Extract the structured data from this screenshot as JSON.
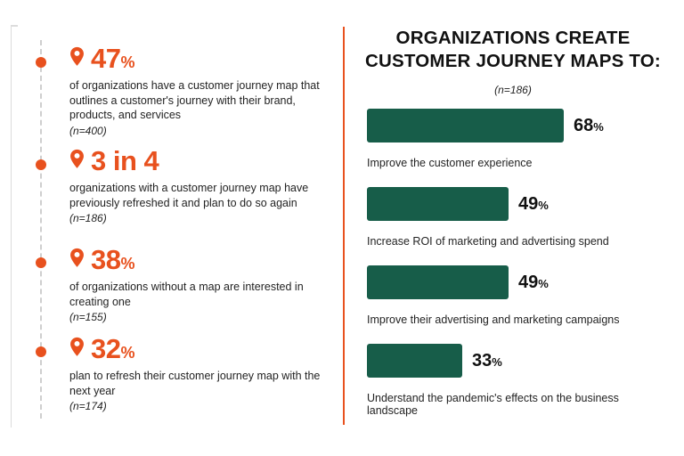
{
  "colors": {
    "accent_orange": "#e8511e",
    "bar_green": "#175d49",
    "text_dark": "#1f1f1f",
    "timeline_gray": "#cfcfcf"
  },
  "left_panel": {
    "stats": [
      {
        "value": "47",
        "suffix": "%",
        "description": "of organizations have a customer journey map that outlines a customer's journey with their brand, products, and services",
        "sample": "(n=400)"
      },
      {
        "value": "3 in 4",
        "suffix": "",
        "description": "organizations with a customer journey map have previously refreshed it and plan to do so again",
        "sample": "(n=186)"
      },
      {
        "value": "38",
        "suffix": "%",
        "description": "of organizations without a map are interested in creating one",
        "sample": "(n=155)"
      },
      {
        "value": "32",
        "suffix": "%",
        "description": "plan to refresh their customer journey map with the next year",
        "sample": "(n=174)"
      }
    ]
  },
  "right_panel": {
    "title_line1": "ORGANIZATIONS CREATE",
    "title_line2": "CUSTOMER JOURNEY MAPS TO:",
    "sample": "(n=186)"
  },
  "chart_data": {
    "type": "bar",
    "orientation": "horizontal",
    "title": "ORGANIZATIONS CREATE CUSTOMER JOURNEY MAPS TO:",
    "subtitle": "(n=186)",
    "categories": [
      "Improve the customer experience",
      "Increase ROI of marketing and advertising spend",
      "Improve their advertising and marketing campaigns",
      "Understand the pandemic's effects on the business landscape"
    ],
    "values": [
      68,
      49,
      49,
      33
    ],
    "value_suffix": "%",
    "xlim": [
      0,
      100
    ],
    "grid": false,
    "legend": "none",
    "bar_color": "#175d49"
  }
}
